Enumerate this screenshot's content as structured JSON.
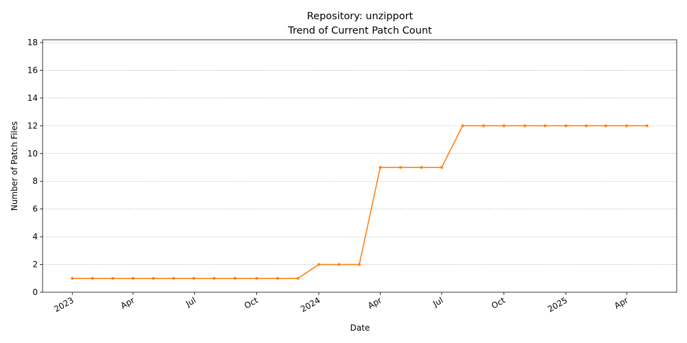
{
  "chart_data": {
    "type": "line",
    "title": "Repository: unzipport",
    "subtitle": "Trend of Current Patch Count",
    "xlabel": "Date",
    "ylabel": "Number of Patch Files",
    "ylim": [
      0,
      18.2
    ],
    "yticks": [
      0,
      2,
      4,
      6,
      8,
      10,
      12,
      14,
      16,
      18
    ],
    "xlim": [
      "2022-11-18",
      "2025-06-14"
    ],
    "xticks": [
      {
        "date": "2023-01-01",
        "label": "2023"
      },
      {
        "date": "2023-04-01",
        "label": "Apr"
      },
      {
        "date": "2023-07-01",
        "label": "Jul"
      },
      {
        "date": "2023-10-01",
        "label": "Oct"
      },
      {
        "date": "2024-01-01",
        "label": "2024"
      },
      {
        "date": "2024-04-01",
        "label": "Apr"
      },
      {
        "date": "2024-07-01",
        "label": "Jul"
      },
      {
        "date": "2024-10-01",
        "label": "Oct"
      },
      {
        "date": "2025-01-01",
        "label": "2025"
      },
      {
        "date": "2025-04-01",
        "label": "Apr"
      }
    ],
    "grid": "y",
    "color": "#ff7f0e",
    "series": [
      {
        "x": [
          "2023-01-01",
          "2023-01-31",
          "2023-03-02",
          "2023-04-01",
          "2023-05-01",
          "2023-05-31",
          "2023-06-30",
          "2023-07-30",
          "2023-08-30",
          "2023-10-01",
          "2023-11-01",
          "2023-12-01",
          "2024-01-01",
          "2024-01-31",
          "2024-03-01",
          "2024-04-01",
          "2024-05-01",
          "2024-06-01",
          "2024-07-01",
          "2024-08-01",
          "2024-09-01",
          "2024-10-01",
          "2024-11-01",
          "2024-12-01",
          "2025-01-01",
          "2025-01-31",
          "2025-03-01",
          "2025-04-01",
          "2025-05-01"
        ],
        "y": [
          1,
          1,
          1,
          1,
          1,
          1,
          1,
          1,
          1,
          1,
          1,
          1,
          2,
          2,
          2,
          9,
          9,
          9,
          9,
          12,
          12,
          12,
          12,
          12,
          12,
          12,
          12,
          12,
          12
        ]
      }
    ]
  }
}
